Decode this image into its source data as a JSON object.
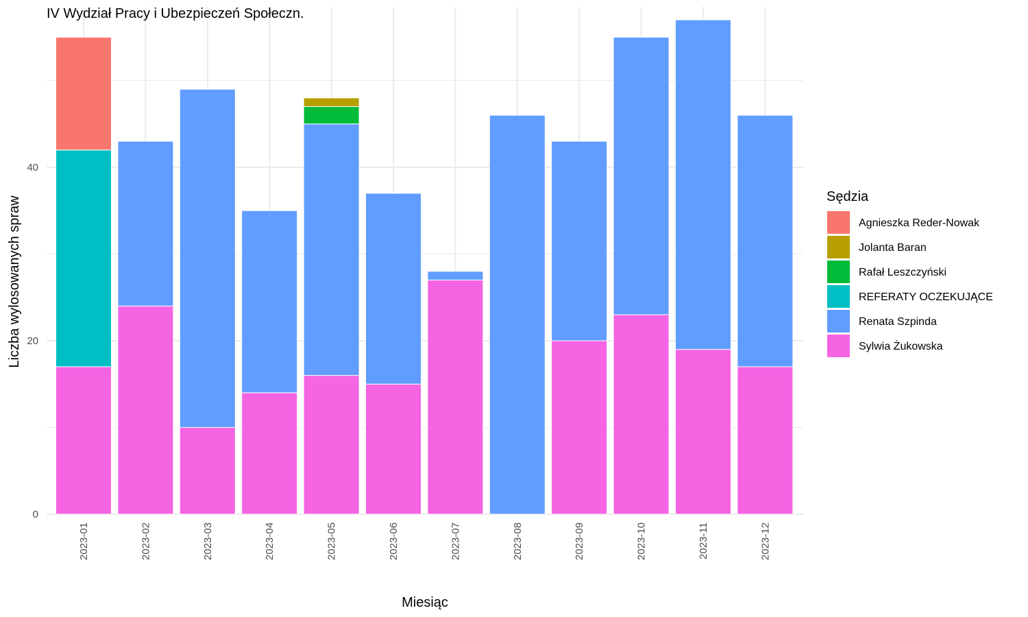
{
  "chart_data": {
    "type": "bar",
    "stacked": true,
    "title": "IV Wydział Pracy i Ubezpieczeń Społeczn.",
    "xlabel": "Miesiąc",
    "ylabel": "Liczba wylosowanych spraw",
    "ylim": [
      0,
      58.5
    ],
    "yticks": [
      0,
      20,
      40
    ],
    "grid": true,
    "legend_title": "Sędzia",
    "legend_position": "right",
    "categories": [
      "2023-01",
      "2023-02",
      "2023-03",
      "2023-04",
      "2023-05",
      "2023-06",
      "2023-07",
      "2023-08",
      "2023-09",
      "2023-10",
      "2023-11",
      "2023-12"
    ],
    "series": [
      {
        "name": "Agnieszka Reder-Nowak",
        "color": "#F8766D",
        "values": [
          13,
          0,
          0,
          0,
          0,
          0,
          0,
          0,
          0,
          0,
          0,
          0
        ]
      },
      {
        "name": "Jolanta Baran",
        "color": "#B79F00",
        "values": [
          0,
          0,
          0,
          0,
          1,
          0,
          0,
          0,
          0,
          0,
          0,
          0
        ]
      },
      {
        "name": "Rafał Leszczyński",
        "color": "#00BA38",
        "values": [
          0,
          0,
          0,
          0,
          2,
          0,
          0,
          0,
          0,
          0,
          0,
          0
        ]
      },
      {
        "name": "REFERATY OCZEKUJĄCE",
        "color": "#00BFC4",
        "values": [
          25,
          0,
          0,
          0,
          0,
          0,
          0,
          0,
          0,
          0,
          0,
          0
        ]
      },
      {
        "name": "Renata Szpinda",
        "color": "#619CFF",
        "values": [
          0,
          19,
          39,
          21,
          29,
          22,
          1,
          46,
          23,
          32,
          38,
          29
        ]
      },
      {
        "name": "Sylwia Żukowska",
        "color": "#F564E3",
        "values": [
          17,
          24,
          10,
          14,
          16,
          15,
          27,
          0,
          20,
          23,
          19,
          17
        ]
      }
    ]
  }
}
